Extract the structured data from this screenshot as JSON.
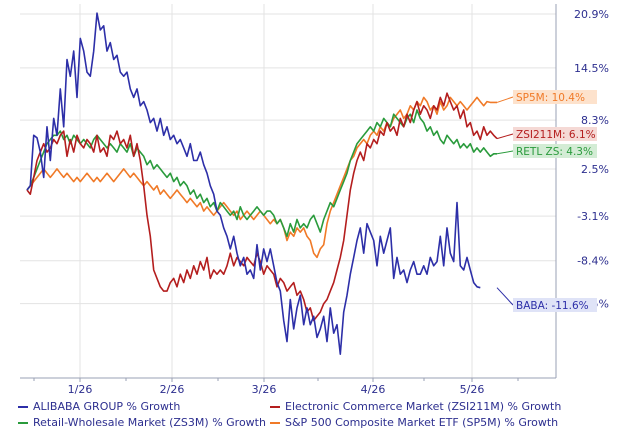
{
  "chart_data": {
    "type": "line",
    "x_ticks": [
      "1/26",
      "2/26",
      "3/26",
      "4/26",
      "5/26"
    ],
    "y_ticks": [
      "20.9%",
      "14.5%",
      "8.3%",
      "2.5%",
      "-3.1%",
      "-8.4%",
      "-13.5%"
    ],
    "y_tick_values": [
      20.9,
      14.5,
      8.3,
      2.5,
      -3.1,
      -8.4,
      -13.5
    ],
    "ylim": [
      -19,
      22
    ],
    "x_days": [
      0,
      1,
      2,
      3,
      4,
      5,
      6,
      7,
      8,
      9,
      10,
      11,
      12,
      13,
      14,
      15,
      16,
      17,
      18,
      19,
      20,
      21,
      22,
      23,
      24,
      25,
      26,
      27,
      28,
      29,
      30,
      31,
      32,
      33,
      34,
      35,
      36,
      37,
      38,
      39,
      40,
      41,
      42,
      43,
      44,
      45,
      46,
      47,
      48,
      49,
      50,
      51,
      52,
      53,
      54,
      55,
      56,
      57,
      58,
      59,
      60,
      61,
      62,
      63,
      64,
      65,
      66,
      67,
      68,
      69,
      70,
      71,
      72,
      73,
      74,
      75,
      76,
      77,
      78,
      79,
      80,
      81,
      82,
      83,
      84,
      85,
      86,
      87,
      88,
      89,
      90,
      91,
      92,
      93,
      94,
      95,
      96,
      97,
      98,
      99,
      100,
      101,
      102,
      103,
      104,
      105,
      106,
      107,
      108,
      109,
      110,
      111,
      112,
      113,
      114,
      115,
      116,
      117,
      118,
      119,
      120,
      121,
      122,
      123,
      124,
      125,
      126,
      127,
      128,
      129,
      130,
      131,
      132,
      133,
      134,
      135,
      136,
      137,
      138,
      139,
      140,
      141
    ],
    "series": [
      {
        "name": "ALIBABA GROUP % Growth",
        "end_label": "BABA: -11.6%",
        "color": "#2d2fa8",
        "label_bg": "#dfe3f7",
        "values": [
          0,
          0.5,
          6.5,
          6.2,
          4.5,
          1.5,
          7.5,
          3.5,
          8.5,
          6.5,
          12,
          7.5,
          15.5,
          13.5,
          16.5,
          11,
          18,
          16.5,
          14,
          13.5,
          16.5,
          21,
          19,
          19.5,
          16.5,
          17.5,
          15.5,
          16,
          14,
          13.5,
          14,
          12,
          11,
          12,
          10,
          10.5,
          9.5,
          8,
          8.5,
          7,
          8.5,
          6.5,
          7.5,
          6,
          6.5,
          5.5,
          6,
          5,
          4,
          5.5,
          3.5,
          3.5,
          4.5,
          3,
          2,
          0.5,
          -0.5,
          -2.5,
          -3,
          -4.5,
          -5.5,
          -7,
          -5.5,
          -7.5,
          -9,
          -8,
          -10,
          -9.5,
          -10.5,
          -6.5,
          -9.5,
          -7,
          -8.5,
          -7,
          -9,
          -11,
          -12,
          -15.5,
          -18,
          -13,
          -16.5,
          -14,
          -12.5,
          -16,
          -14,
          -16,
          -15,
          -17.5,
          -16.5,
          -15,
          -18,
          -14,
          -17,
          -16,
          -19.5,
          -14.5,
          -12.5,
          -10,
          -8,
          -6,
          -4.5,
          -7.5,
          -4,
          -5,
          -6,
          -9,
          -5.5,
          -7.5,
          -6,
          -4.5,
          -10.5,
          -8,
          -10,
          -9.5,
          -11,
          -9.5,
          -8.5,
          -10,
          -10,
          -9,
          -10,
          -8,
          -9,
          -8.5,
          -5.5,
          -9,
          -4.5,
          -7.5,
          -8.5,
          -1.5,
          -9,
          -9.5,
          -8,
          -9.5,
          -11,
          -11.5,
          -11.6
        ]
      },
      {
        "name": "Electronic Commerce Market (ZSI211M) % Growth",
        "end_label": "ZSI211M: 6.1%",
        "color": "#b41e1e",
        "label_bg": "#f5d9d5",
        "values": [
          0,
          -0.5,
          1.5,
          3.5,
          4.5,
          5.5,
          4.5,
          5,
          6,
          5.5,
          6.5,
          7,
          4,
          6,
          4.5,
          6.5,
          5.5,
          5,
          6,
          5.5,
          4.5,
          6.5,
          4.5,
          5,
          4,
          6.5,
          6,
          7,
          5.5,
          6,
          5,
          6.5,
          4,
          5.5,
          3.5,
          0.5,
          -3,
          -5.5,
          -9.5,
          -10.5,
          -11.5,
          -12,
          -12,
          -11,
          -10.5,
          -11.5,
          -10,
          -11,
          -9.5,
          -10.5,
          -9,
          -10,
          -8.5,
          -9.5,
          -8,
          -10.5,
          -9.5,
          -10,
          -9.5,
          -10,
          -9,
          -7.5,
          -9,
          -8,
          -8.5,
          -9,
          -8,
          -8.5,
          -9,
          -7.5,
          -8.5,
          -10,
          -9,
          -9.5,
          -10,
          -11.5,
          -10.5,
          -11,
          -12,
          -11.5,
          -11,
          -12.5,
          -12,
          -13,
          -14.5,
          -14,
          -15.5,
          -15,
          -14.5,
          -13.5,
          -13,
          -12,
          -11,
          -9.5,
          -8,
          -6,
          -3,
          0,
          2,
          3.5,
          4.5,
          3.5,
          5.5,
          5,
          6,
          5.5,
          7,
          6.5,
          8,
          7,
          7.5,
          6.5,
          8.5,
          7.5,
          9,
          8,
          9.5,
          10.5,
          9,
          10,
          9.5,
          8.5,
          10,
          9.5,
          11,
          10,
          11.5,
          10.5,
          9.5,
          10,
          8.5,
          9.5,
          7.5,
          8,
          6.5,
          7,
          6,
          7.5,
          6.5,
          7,
          6.5,
          6.1
        ]
      },
      {
        "name": "Retail-Wholesale Market (ZS3M) % Growth",
        "end_label": "RETL ZS: 4.3%",
        "color": "#2a9b3c",
        "label_bg": "#d3ecd5",
        "values": [
          0,
          0.5,
          1.5,
          2.5,
          3.5,
          4.5,
          5.5,
          6,
          6.5,
          6.5,
          7,
          6,
          6.5,
          5.5,
          6.5,
          6,
          5.5,
          6,
          5.5,
          5,
          6,
          6.5,
          6,
          5.5,
          5,
          5.5,
          5,
          4.5,
          5.5,
          5,
          4.5,
          5.5,
          4,
          5,
          4.5,
          4,
          3,
          3.5,
          2.5,
          3,
          2.5,
          2,
          1.5,
          2,
          1,
          1.5,
          0.5,
          1,
          0.5,
          -0.5,
          0,
          -1,
          -0.5,
          -1.5,
          -1,
          -2,
          -1.5,
          -2.5,
          -1.5,
          -2,
          -2.5,
          -3,
          -2.5,
          -3.5,
          -2,
          -3,
          -3.5,
          -3,
          -2.5,
          -2,
          -2.5,
          -3,
          -2.5,
          -2.5,
          -3,
          -4,
          -3.5,
          -4.5,
          -5.5,
          -4,
          -5,
          -3.5,
          -4.5,
          -4,
          -4.5,
          -3.5,
          -3,
          -4,
          -5,
          -3.5,
          -2.5,
          -1.5,
          -2,
          -1,
          0,
          1,
          2,
          3.5,
          4.5,
          5.5,
          6,
          6.5,
          7,
          7.5,
          7,
          8,
          7.5,
          8.5,
          8,
          7.5,
          9,
          8.5,
          8,
          7.5,
          8.5,
          9,
          8,
          9.5,
          8.5,
          8,
          7,
          7.5,
          6.5,
          7,
          6,
          5.5,
          6.5,
          6,
          5.5,
          6,
          5,
          5.5,
          5,
          5.5,
          4.5,
          5,
          4.5,
          5,
          4.5,
          4,
          4.3,
          4.3
        ]
      },
      {
        "name": "S&P 500 Composite Market ETF (SP5M) % Growth",
        "end_label": "SP5M: 10.4%",
        "color": "#f07a28",
        "label_bg": "#fde2cc",
        "values": [
          0,
          0.5,
          1,
          1.5,
          2,
          2.5,
          2,
          1.5,
          2,
          2.5,
          2,
          1.5,
          2,
          1.5,
          1,
          1.5,
          1,
          1.5,
          2,
          1.5,
          1,
          1.5,
          1,
          1.5,
          2,
          1.5,
          1,
          1.5,
          2,
          2.5,
          2,
          1.5,
          2,
          1.5,
          1,
          0.5,
          1,
          0.5,
          0,
          0.5,
          -0.5,
          0,
          -0.5,
          -1,
          -0.5,
          0,
          -0.5,
          -1,
          -1.5,
          -1,
          -1.5,
          -2,
          -1.5,
          -2.5,
          -2,
          -2.5,
          -3,
          -2.5,
          -2,
          -1.5,
          -2,
          -2.5,
          -3,
          -2.5,
          -3.5,
          -3,
          -2.5,
          -3,
          -3.5,
          -3,
          -2.5,
          -3,
          -3.5,
          -4,
          -3.5,
          -4,
          -3.5,
          -4.5,
          -6,
          -5,
          -5.5,
          -4.5,
          -5,
          -4.5,
          -5.5,
          -6,
          -7.5,
          -8,
          -7,
          -6.5,
          -4,
          -2.5,
          -1.5,
          -0.5,
          0.5,
          1.5,
          2.5,
          3.5,
          4,
          5,
          5.5,
          6,
          5.5,
          6.5,
          7,
          6.5,
          7.5,
          7,
          8,
          7.5,
          8.5,
          9,
          9.5,
          8.5,
          9,
          10,
          9.5,
          10.5,
          10,
          11,
          10.5,
          9.5,
          10,
          9,
          10.5,
          9.5,
          10,
          11,
          10.5,
          10,
          10.5,
          10,
          9.5,
          10,
          10.5,
          11,
          10.5,
          10,
          10.5,
          10.4,
          10.4,
          10.4
        ]
      }
    ],
    "legend": [
      "ALIBABA GROUP % Growth",
      "Electronic Commerce Market (ZSI211M) % Growth",
      "Retail-Wholesale Market (ZS3M) % Growth",
      "S&P 500 Composite Market ETF (SP5M) % Growth"
    ]
  }
}
